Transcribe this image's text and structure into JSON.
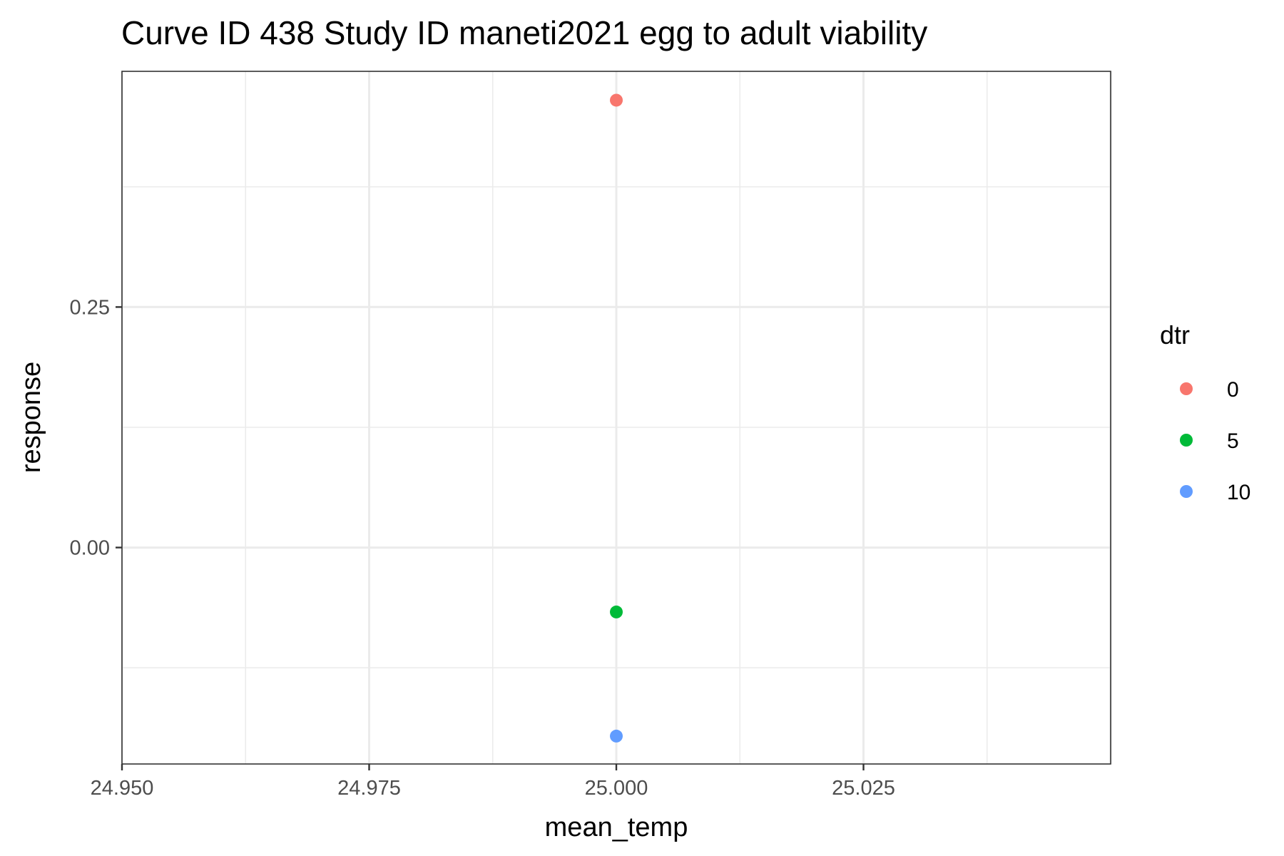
{
  "chart_data": {
    "type": "scatter",
    "title": "Curve ID 438 Study ID maneti2021 egg to adult viability",
    "xlabel": "mean_temp",
    "ylabel": "response",
    "xlim": [
      24.95,
      25.05
    ],
    "ylim": [
      -0.225,
      0.495
    ],
    "x_ticks": [
      24.95,
      24.975,
      25.0,
      25.025
    ],
    "x_tick_labels": [
      "24.950",
      "24.975",
      "25.000",
      "25.025"
    ],
    "y_ticks": [
      0.0,
      0.25
    ],
    "y_tick_labels": [
      "0.00",
      "0.25"
    ],
    "grid": true,
    "legend_position": "right",
    "legend_title": "dtr",
    "series": [
      {
        "name": "0",
        "color": "#F8766D",
        "points": [
          {
            "x": 25.0,
            "y": 0.465
          }
        ]
      },
      {
        "name": "5",
        "color": "#00BA38",
        "points": [
          {
            "x": 25.0,
            "y": -0.067
          }
        ]
      },
      {
        "name": "10",
        "color": "#619CFF",
        "points": [
          {
            "x": 25.0,
            "y": -0.196
          }
        ]
      }
    ]
  }
}
